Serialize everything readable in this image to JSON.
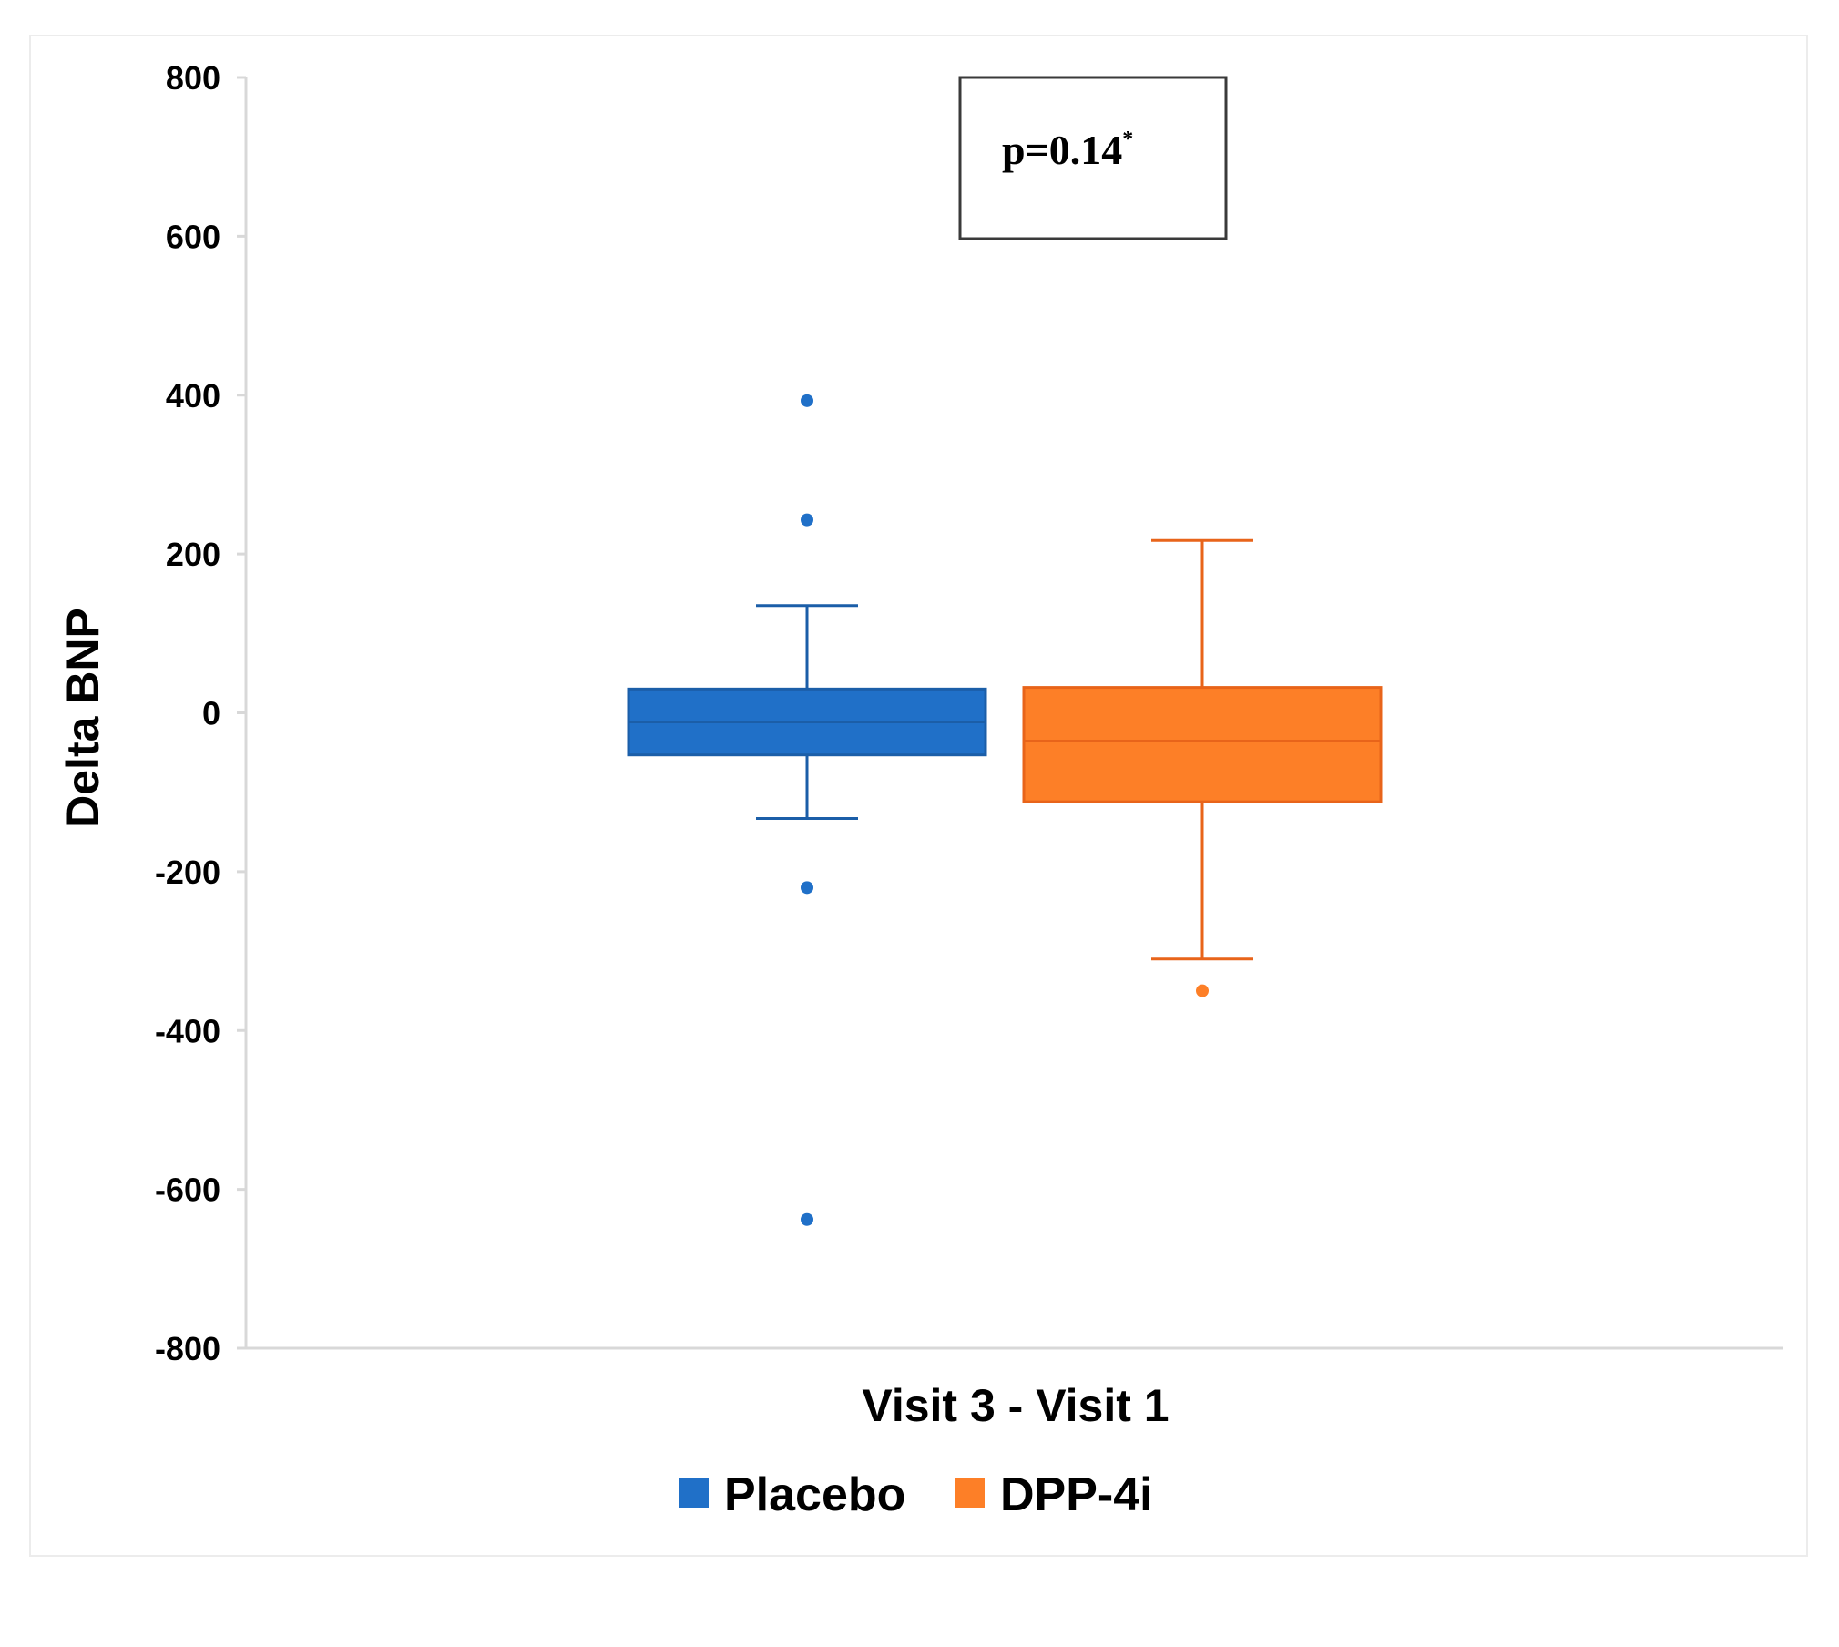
{
  "chart_data": {
    "type": "box",
    "title": "",
    "xlabel": "Visit 3 - Visit 1",
    "ylabel": "Delta  BNP",
    "ylim": [
      -800,
      800
    ],
    "yticks": [
      800,
      600,
      400,
      200,
      0,
      -200,
      -400,
      -600,
      -800
    ],
    "ytick_labels": [
      "800",
      "600",
      "400",
      "200",
      "0",
      "-200",
      "-400",
      "-600",
      "-800"
    ],
    "categories": [
      "Visit 3 - Visit 1"
    ],
    "annotation": {
      "text": "p=0.14",
      "superscript": "*"
    },
    "legend_position": "bottom",
    "series": [
      {
        "name": "Placebo",
        "color": "#2070c8",
        "stroke": "#1b5ea8",
        "whisker_high": 135,
        "q3": 30,
        "median": -12,
        "q1": -53,
        "whisker_low": -133,
        "outliers": [
          393,
          243,
          -220,
          -638
        ]
      },
      {
        "name": "DPP-4i",
        "color": "#fd7f27",
        "stroke": "#e8641a",
        "whisker_high": 217,
        "q3": 32,
        "median": -35,
        "q1": -112,
        "whisker_low": -310,
        "outliers": [
          -350
        ]
      }
    ]
  }
}
